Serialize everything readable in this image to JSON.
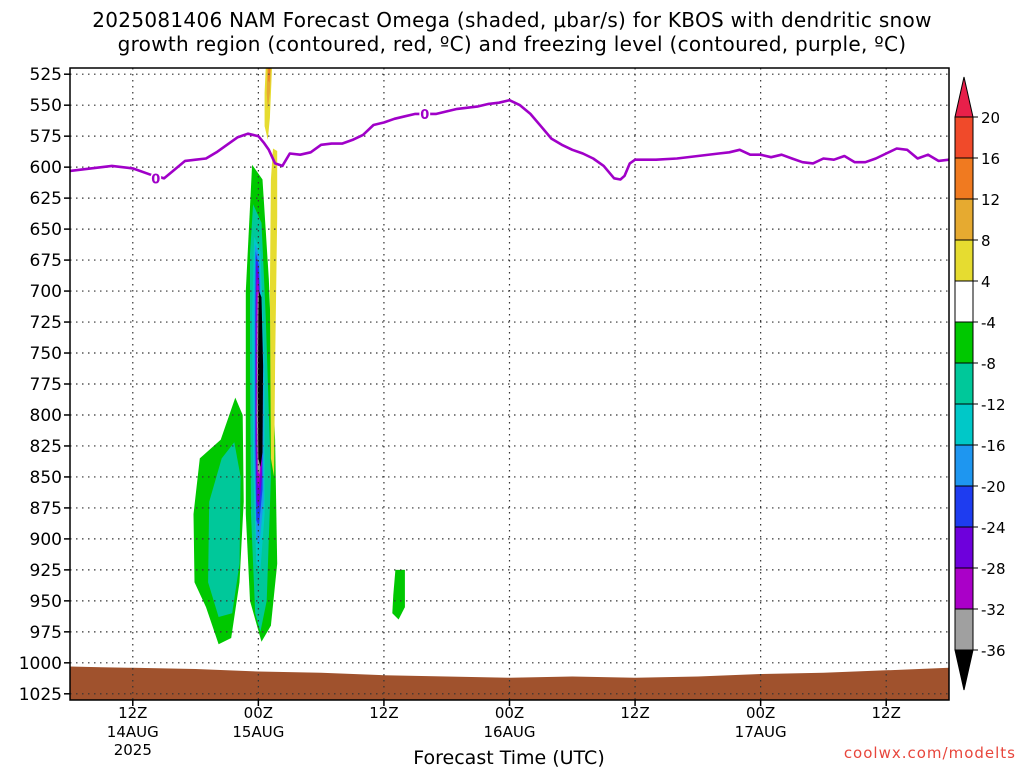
{
  "title_line1": "2025081406 NAM Forecast Omega (shaded, μbar/s) for KBOS with dendritic snow",
  "title_line2": "growth region (contoured, red, ºC) and freezing level (contoured, purple, ºC)",
  "credit": "coolwx.com/modelts",
  "chart_data": {
    "type": "heatmap",
    "xlabel": "Forecast Time (UTC)",
    "x_range_hours": [
      0,
      84
    ],
    "y_range_hPa": [
      520,
      1030
    ],
    "y_ticks": [
      525,
      550,
      575,
      600,
      625,
      650,
      675,
      700,
      725,
      750,
      775,
      800,
      825,
      850,
      875,
      900,
      925,
      950,
      975,
      1000,
      1025
    ],
    "x_ticks": [
      {
        "hour": 6,
        "label": "12Z",
        "sub": "14AUG",
        "sub2": "2025"
      },
      {
        "hour": 18,
        "label": "00Z",
        "sub": "15AUG",
        "sub2": ""
      },
      {
        "hour": 30,
        "label": "12Z",
        "sub": "",
        "sub2": ""
      },
      {
        "hour": 42,
        "label": "00Z",
        "sub": "16AUG",
        "sub2": ""
      },
      {
        "hour": 54,
        "label": "12Z",
        "sub": "",
        "sub2": ""
      },
      {
        "hour": 66,
        "label": "00Z",
        "sub": "17AUG",
        "sub2": ""
      },
      {
        "hour": 78,
        "label": "12Z",
        "sub": "",
        "sub2": ""
      }
    ],
    "grid": true,
    "colorbar": {
      "labels": [
        "20",
        "16",
        "12",
        "8",
        "4",
        "-4",
        "-8",
        "-12",
        "-16",
        "-20",
        "-24",
        "-28",
        "-32",
        "-36"
      ],
      "colors": [
        "#e8204a",
        "#f04a2a",
        "#f07a20",
        "#e6aa30",
        "#e6dc30",
        "#ffffff",
        "#00c800",
        "#00c89a",
        "#00c8c8",
        "#1e96f0",
        "#1e3cf0",
        "#6e00dc",
        "#aa00c8",
        "#a0a0a0",
        "#000000"
      ]
    },
    "freezing_level": {
      "color": "#a000c8",
      "label": "0",
      "points": [
        [
          0,
          603
        ],
        [
          2,
          601
        ],
        [
          4,
          599
        ],
        [
          6,
          601
        ],
        [
          8,
          607
        ],
        [
          9,
          609
        ],
        [
          10,
          602
        ],
        [
          11,
          595
        ],
        [
          12,
          594
        ],
        [
          13,
          593
        ],
        [
          14,
          588
        ],
        [
          15,
          582
        ],
        [
          16,
          576
        ],
        [
          17,
          573
        ],
        [
          18,
          575
        ],
        [
          18.5,
          580
        ],
        [
          19,
          586
        ],
        [
          19.6,
          597
        ],
        [
          20.3,
          599
        ],
        [
          21,
          589
        ],
        [
          22,
          590
        ],
        [
          23,
          588
        ],
        [
          24,
          582
        ],
        [
          25,
          581
        ],
        [
          26,
          581
        ],
        [
          27,
          578
        ],
        [
          28,
          574
        ],
        [
          29,
          566
        ],
        [
          30,
          564
        ],
        [
          31,
          561
        ],
        [
          32,
          559
        ],
        [
          33,
          557
        ],
        [
          34,
          557
        ],
        [
          35,
          557
        ],
        [
          36,
          555
        ],
        [
          37,
          553
        ],
        [
          38,
          552
        ],
        [
          39,
          551
        ],
        [
          40,
          549
        ],
        [
          41,
          548
        ],
        [
          42,
          546
        ],
        [
          43,
          550
        ],
        [
          44,
          557
        ],
        [
          45,
          567
        ],
        [
          46,
          577
        ],
        [
          47,
          582
        ],
        [
          48,
          586
        ],
        [
          49,
          589
        ],
        [
          50,
          593
        ],
        [
          51,
          599
        ],
        [
          52,
          609
        ],
        [
          52.6,
          610
        ],
        [
          53,
          607
        ],
        [
          53.5,
          597
        ],
        [
          54,
          594
        ],
        [
          56,
          594
        ],
        [
          58,
          593
        ],
        [
          60,
          591
        ],
        [
          62,
          589
        ],
        [
          63,
          588
        ],
        [
          64,
          586
        ],
        [
          65,
          590
        ],
        [
          66,
          590
        ],
        [
          67,
          592
        ],
        [
          68,
          590
        ],
        [
          69,
          593
        ],
        [
          70,
          596
        ],
        [
          71,
          597
        ],
        [
          72,
          593
        ],
        [
          73,
          594
        ],
        [
          74,
          591
        ],
        [
          75,
          596
        ],
        [
          76,
          596
        ],
        [
          77,
          593
        ],
        [
          78,
          589
        ],
        [
          79,
          585
        ],
        [
          80,
          586
        ],
        [
          81,
          593
        ],
        [
          82,
          590
        ],
        [
          83,
          595
        ],
        [
          84,
          594
        ]
      ]
    },
    "omega_regions": [
      {
        "value": -4,
        "color": "#00c800",
        "polygon": [
          [
            17.4,
            598
          ],
          [
            18.4,
            610
          ],
          [
            19,
            690
          ],
          [
            19.6,
            820
          ],
          [
            19.8,
            920
          ],
          [
            19.2,
            970
          ],
          [
            18.3,
            983
          ],
          [
            17.2,
            950
          ],
          [
            16.8,
            880
          ],
          [
            16.8,
            700
          ]
        ]
      },
      {
        "value": -4,
        "color": "#00c800",
        "polygon": [
          [
            15.8,
            786
          ],
          [
            16.5,
            800
          ],
          [
            16.6,
            870
          ],
          [
            16.2,
            935
          ],
          [
            15.4,
            980
          ],
          [
            14.2,
            985
          ],
          [
            13,
            955
          ],
          [
            11.9,
            935
          ],
          [
            11.8,
            880
          ],
          [
            12.4,
            835
          ],
          [
            14.4,
            820
          ]
        ]
      },
      {
        "value": -8,
        "color": "#00c89a",
        "polygon": [
          [
            17.5,
            630
          ],
          [
            18.3,
            645
          ],
          [
            18.7,
            720
          ],
          [
            19.2,
            850
          ],
          [
            18.8,
            950
          ],
          [
            18.2,
            975
          ],
          [
            17.7,
            960
          ],
          [
            17.3,
            880
          ],
          [
            17.2,
            760
          ],
          [
            17.2,
            670
          ]
        ]
      },
      {
        "value": -8,
        "color": "#00c89a",
        "polygon": [
          [
            15.7,
            822
          ],
          [
            16.3,
            850
          ],
          [
            16.2,
            920
          ],
          [
            15.5,
            960
          ],
          [
            14.2,
            963
          ],
          [
            13.2,
            935
          ],
          [
            13.3,
            870
          ],
          [
            14.5,
            835
          ]
        ]
      },
      {
        "value": -12,
        "color": "#00c8c8",
        "polygon": [
          [
            17.6,
            656
          ],
          [
            18.2,
            668
          ],
          [
            18.6,
            760
          ],
          [
            18.6,
            880
          ],
          [
            18.2,
            925
          ],
          [
            17.8,
            920
          ],
          [
            17.5,
            840
          ],
          [
            17.4,
            720
          ]
        ]
      },
      {
        "value": -16,
        "color": "#1e96f0",
        "polygon": [
          [
            17.7,
            662
          ],
          [
            18.1,
            672
          ],
          [
            18.5,
            760
          ],
          [
            18.5,
            870
          ],
          [
            18.1,
            905
          ],
          [
            17.8,
            900
          ],
          [
            17.6,
            830
          ],
          [
            17.6,
            710
          ]
        ]
      },
      {
        "value": -20,
        "color": "#1e3cf0",
        "polygon": [
          [
            17.75,
            668
          ],
          [
            18.05,
            680
          ],
          [
            18.4,
            760
          ],
          [
            18.4,
            860
          ],
          [
            18.05,
            890
          ],
          [
            17.8,
            885
          ],
          [
            17.7,
            820
          ],
          [
            17.7,
            720
          ]
        ]
      },
      {
        "value": -24,
        "color": "#6e00dc",
        "polygon": [
          [
            17.8,
            676
          ],
          [
            18.05,
            690
          ],
          [
            18.35,
            760
          ],
          [
            18.35,
            850
          ],
          [
            18.05,
            875
          ],
          [
            17.85,
            870
          ],
          [
            17.75,
            820
          ],
          [
            17.75,
            730
          ]
        ]
      },
      {
        "value": -28,
        "color": "#aa00c8",
        "polygon": [
          [
            17.85,
            688
          ],
          [
            18.05,
            700
          ],
          [
            18.3,
            770
          ],
          [
            18.3,
            840
          ],
          [
            18.05,
            858
          ],
          [
            17.9,
            855
          ],
          [
            17.8,
            810
          ],
          [
            17.8,
            740
          ]
        ]
      },
      {
        "value": -32,
        "color": "#a0a0a0",
        "polygon": [
          [
            17.95,
            700
          ],
          [
            18.1,
            705
          ],
          [
            18.3,
            770
          ],
          [
            18.3,
            830
          ],
          [
            18.1,
            848
          ],
          [
            17.95,
            845
          ],
          [
            17.85,
            800
          ],
          [
            17.9,
            730
          ]
        ]
      },
      {
        "value": -36,
        "color": "#000000",
        "polygon": [
          [
            18.05,
            700
          ],
          [
            18.3,
            705
          ],
          [
            18.45,
            760
          ],
          [
            18.4,
            830
          ],
          [
            18.2,
            842
          ],
          [
            18.0,
            835
          ],
          [
            17.95,
            780
          ],
          [
            18.0,
            720
          ]
        ]
      },
      {
        "value": -4,
        "color": "#00c800",
        "polygon": [
          [
            31.1,
            925
          ],
          [
            32,
            925
          ],
          [
            32,
            955
          ],
          [
            31.4,
            965
          ],
          [
            30.8,
            960
          ],
          [
            30.9,
            945
          ]
        ]
      },
      {
        "value": 4,
        "color": "#e6dc30",
        "polygon": [
          [
            19.4,
            585
          ],
          [
            19.8,
            587
          ],
          [
            19.8,
            640
          ],
          [
            19.6,
            760
          ],
          [
            19.5,
            850
          ],
          [
            19.2,
            835
          ],
          [
            19.1,
            700
          ],
          [
            19.2,
            610
          ]
        ]
      },
      {
        "value": 4,
        "color": "#e6dc30",
        "polygon": [
          [
            18.7,
            520
          ],
          [
            19.3,
            520
          ],
          [
            19.1,
            560
          ],
          [
            18.9,
            578
          ],
          [
            18.6,
            567
          ],
          [
            18.6,
            540
          ]
        ]
      },
      {
        "value": 8,
        "color": "#e6aa30",
        "polygon": [
          [
            18.85,
            520
          ],
          [
            19.2,
            520
          ],
          [
            19.1,
            540
          ],
          [
            18.9,
            553
          ],
          [
            18.8,
            540
          ]
        ]
      },
      {
        "value": 12,
        "color": "#f07a20",
        "polygon": [
          [
            18.95,
            520
          ],
          [
            19.15,
            520
          ],
          [
            19.05,
            532
          ],
          [
            18.95,
            530
          ]
        ]
      }
    ],
    "surface_terrain": {
      "color": "#a0522d",
      "points": [
        [
          0,
          1003
        ],
        [
          3,
          1003.5
        ],
        [
          6,
          1004
        ],
        [
          12,
          1005
        ],
        [
          18,
          1007
        ],
        [
          24,
          1008
        ],
        [
          30,
          1010
        ],
        [
          36,
          1011
        ],
        [
          42,
          1012
        ],
        [
          48,
          1011
        ],
        [
          54,
          1012
        ],
        [
          60,
          1011
        ],
        [
          66,
          1009
        ],
        [
          72,
          1008
        ],
        [
          78,
          1006
        ],
        [
          84,
          1004
        ]
      ]
    }
  }
}
